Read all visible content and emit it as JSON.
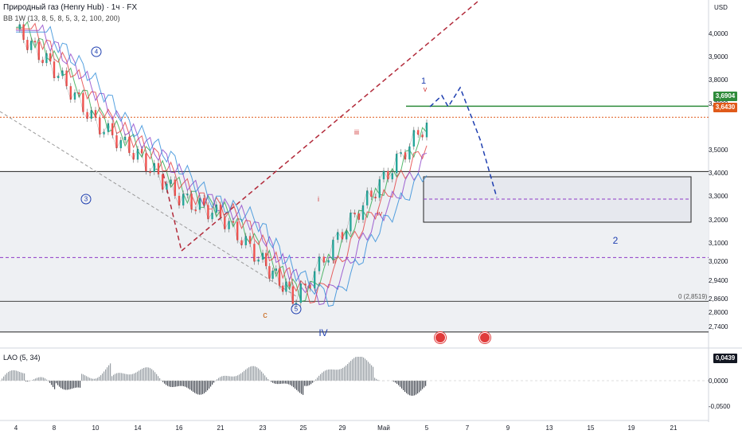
{
  "header": {
    "title": "Природный газ (Henry Hub) · 1ч · FX",
    "indicator": "BB 1W (13, 8, 5, 8, 5, 3, 2, 100, 200)"
  },
  "currency": "USD",
  "price_axis": [
    "4,0000",
    "3,9000",
    "3,8000",
    "3,7000",
    "3,5000",
    "3,4000",
    "3,3000",
    "3,2000",
    "3,1000",
    "3,0200",
    "2,9400",
    "2,8600",
    "2,8000",
    "2,7400"
  ],
  "price_tags": [
    {
      "label": "3,6904",
      "color": "#2e8b3a"
    },
    {
      "label": "3,6430",
      "color": "#e05a1a"
    }
  ],
  "fib_label": "0 (2,8519)",
  "time_axis": [
    "4",
    "8",
    "10",
    "14",
    "16",
    "21",
    "23",
    "25",
    "29",
    "Май",
    "5",
    "7",
    "9",
    "13",
    "15",
    "19",
    "21"
  ],
  "wave_labels": [
    {
      "text": "1",
      "color": "#1f3fb0"
    },
    {
      "text": "v",
      "color": "#d23a3a"
    },
    {
      "text": "iii",
      "color": "#d23a3a"
    },
    {
      "text": "i",
      "color": "#d23a3a"
    },
    {
      "text": "iv",
      "color": "#d23a3a"
    },
    {
      "text": "ii",
      "color": "#d23a3a"
    },
    {
      "text": "2",
      "color": "#1f3fb0"
    },
    {
      "text": "c",
      "color": "#c86414"
    },
    {
      "text": "IV",
      "color": "#1f3fb0"
    }
  ],
  "circle_labels": [
    "4",
    "3",
    "5"
  ],
  "oscillator": {
    "title": "LAO (5, 34)",
    "axis": [
      "0,0000",
      "-0,0500"
    ],
    "value_tag": "0,0439"
  },
  "chart_data": {
    "type": "line",
    "title": "Природный газ (Henry Hub) · 1ч · FX",
    "ylim": [
      2.7,
      4.05
    ],
    "x": [
      "4",
      "8",
      "10",
      "14",
      "16",
      "21",
      "23",
      "25",
      "29",
      "Май",
      "5"
    ],
    "series": [
      {
        "values": [
          4.02,
          3.85,
          3.62,
          3.48,
          3.3,
          3.22,
          3.02,
          2.86,
          3.15,
          3.38,
          3.62
        ]
      }
    ],
    "horizontal_levels": [
      3.6904,
      3.643,
      3.41,
      3.04,
      2.8519,
      2.72
    ],
    "grid": true
  }
}
